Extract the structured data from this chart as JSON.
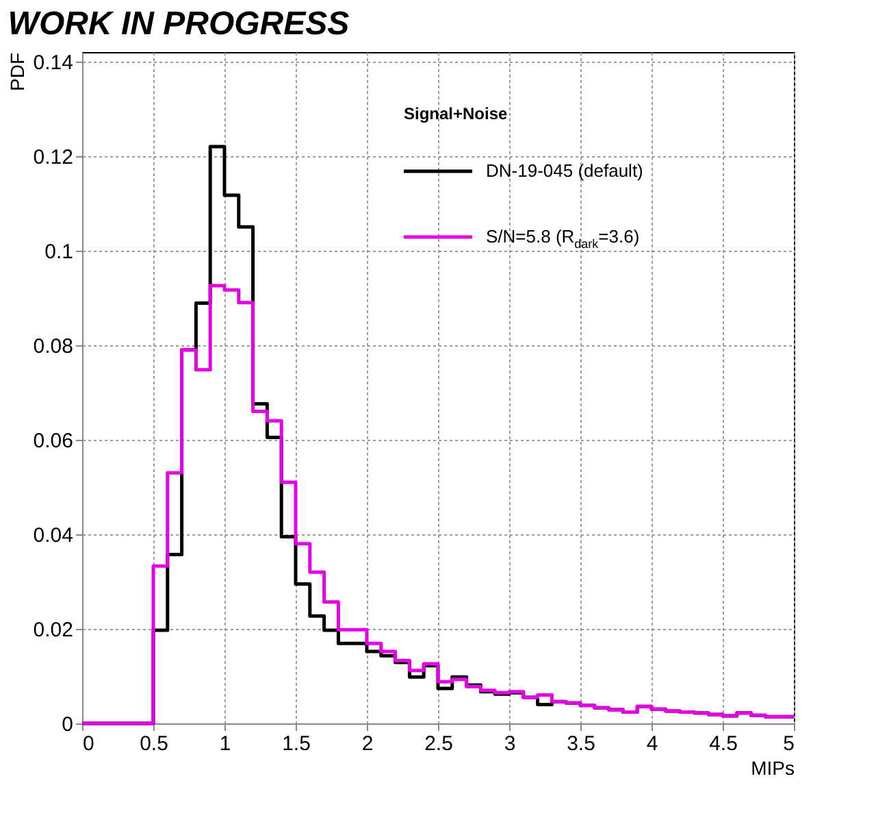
{
  "chart_data": {
    "type": "histogram",
    "title": "WORK IN PROGRESS",
    "xlabel": "MIPs",
    "ylabel": "PDF",
    "legend_title": "Signal+Noise",
    "bins": [
      0,
      0.1,
      0.2,
      0.3,
      0.4,
      0.5,
      0.6,
      0.7,
      0.8,
      0.9,
      1,
      1.1,
      1.2,
      1.3,
      1.4,
      1.5,
      1.6,
      1.7,
      1.8,
      1.9,
      2,
      2.1,
      2.2,
      2.3,
      2.4,
      2.5,
      2.6,
      2.7,
      2.8,
      2.9,
      3,
      3.1,
      3.2,
      3.3,
      3.4,
      3.5,
      3.6,
      3.7,
      3.8,
      3.9,
      4,
      4.1,
      4.2,
      4.3,
      4.4,
      4.5,
      4.6,
      4.7,
      4.8,
      4.9,
      5
    ],
    "series": [
      {
        "name": "DN-19-045 (default)",
        "color": "#000000",
        "values": [
          0,
          0,
          0,
          0,
          0,
          0.0197,
          0.0357,
          0.079,
          0.0889,
          0.122,
          0.1117,
          0.105,
          0.0676,
          0.0605,
          0.0395,
          0.0295,
          0.0227,
          0.0197,
          0.0169,
          0.0169,
          0.0152,
          0.0143,
          0.0129,
          0.0098,
          0.0122,
          0.0074,
          0.0098,
          0.0081,
          0.0067,
          0.0062,
          0.0065,
          0.0055,
          0.004,
          0.0046,
          0.0043,
          0.0038,
          0.0033,
          0.0029,
          0.0024,
          0.0036,
          0.003,
          0.0026,
          0.0024,
          0.0022,
          0.0019,
          0.0016,
          0.0022,
          0.0017,
          0.0014,
          0.0014
        ]
      },
      {
        "name": "S/N=5.8 (R$_{dark}$=3.6)",
        "color": "#e600e6",
        "values": [
          0,
          0,
          0,
          0,
          0,
          0.0333,
          0.053,
          0.079,
          0.0748,
          0.0926,
          0.0917,
          0.089,
          0.066,
          0.064,
          0.051,
          0.038,
          0.032,
          0.0257,
          0.0198,
          0.0198,
          0.0169,
          0.0152,
          0.0133,
          0.0112,
          0.0126,
          0.0088,
          0.0093,
          0.0078,
          0.007,
          0.0065,
          0.0067,
          0.0055,
          0.006,
          0.0046,
          0.0043,
          0.0038,
          0.0033,
          0.0029,
          0.0024,
          0.0036,
          0.003,
          0.0026,
          0.0024,
          0.0022,
          0.0019,
          0.0016,
          0.0022,
          0.0017,
          0.0014,
          0.0014
        ]
      }
    ],
    "xlim": [
      0,
      5
    ],
    "xticks": [
      0,
      0.5,
      1,
      1.5,
      2,
      2.5,
      3,
      3.5,
      4,
      4.5,
      5
    ],
    "ylim": [
      0,
      0.142
    ],
    "yticks": [
      0,
      0.02,
      0.04,
      0.06,
      0.08,
      0.1,
      0.12,
      0.14
    ],
    "grid": true,
    "legend": "top right"
  }
}
